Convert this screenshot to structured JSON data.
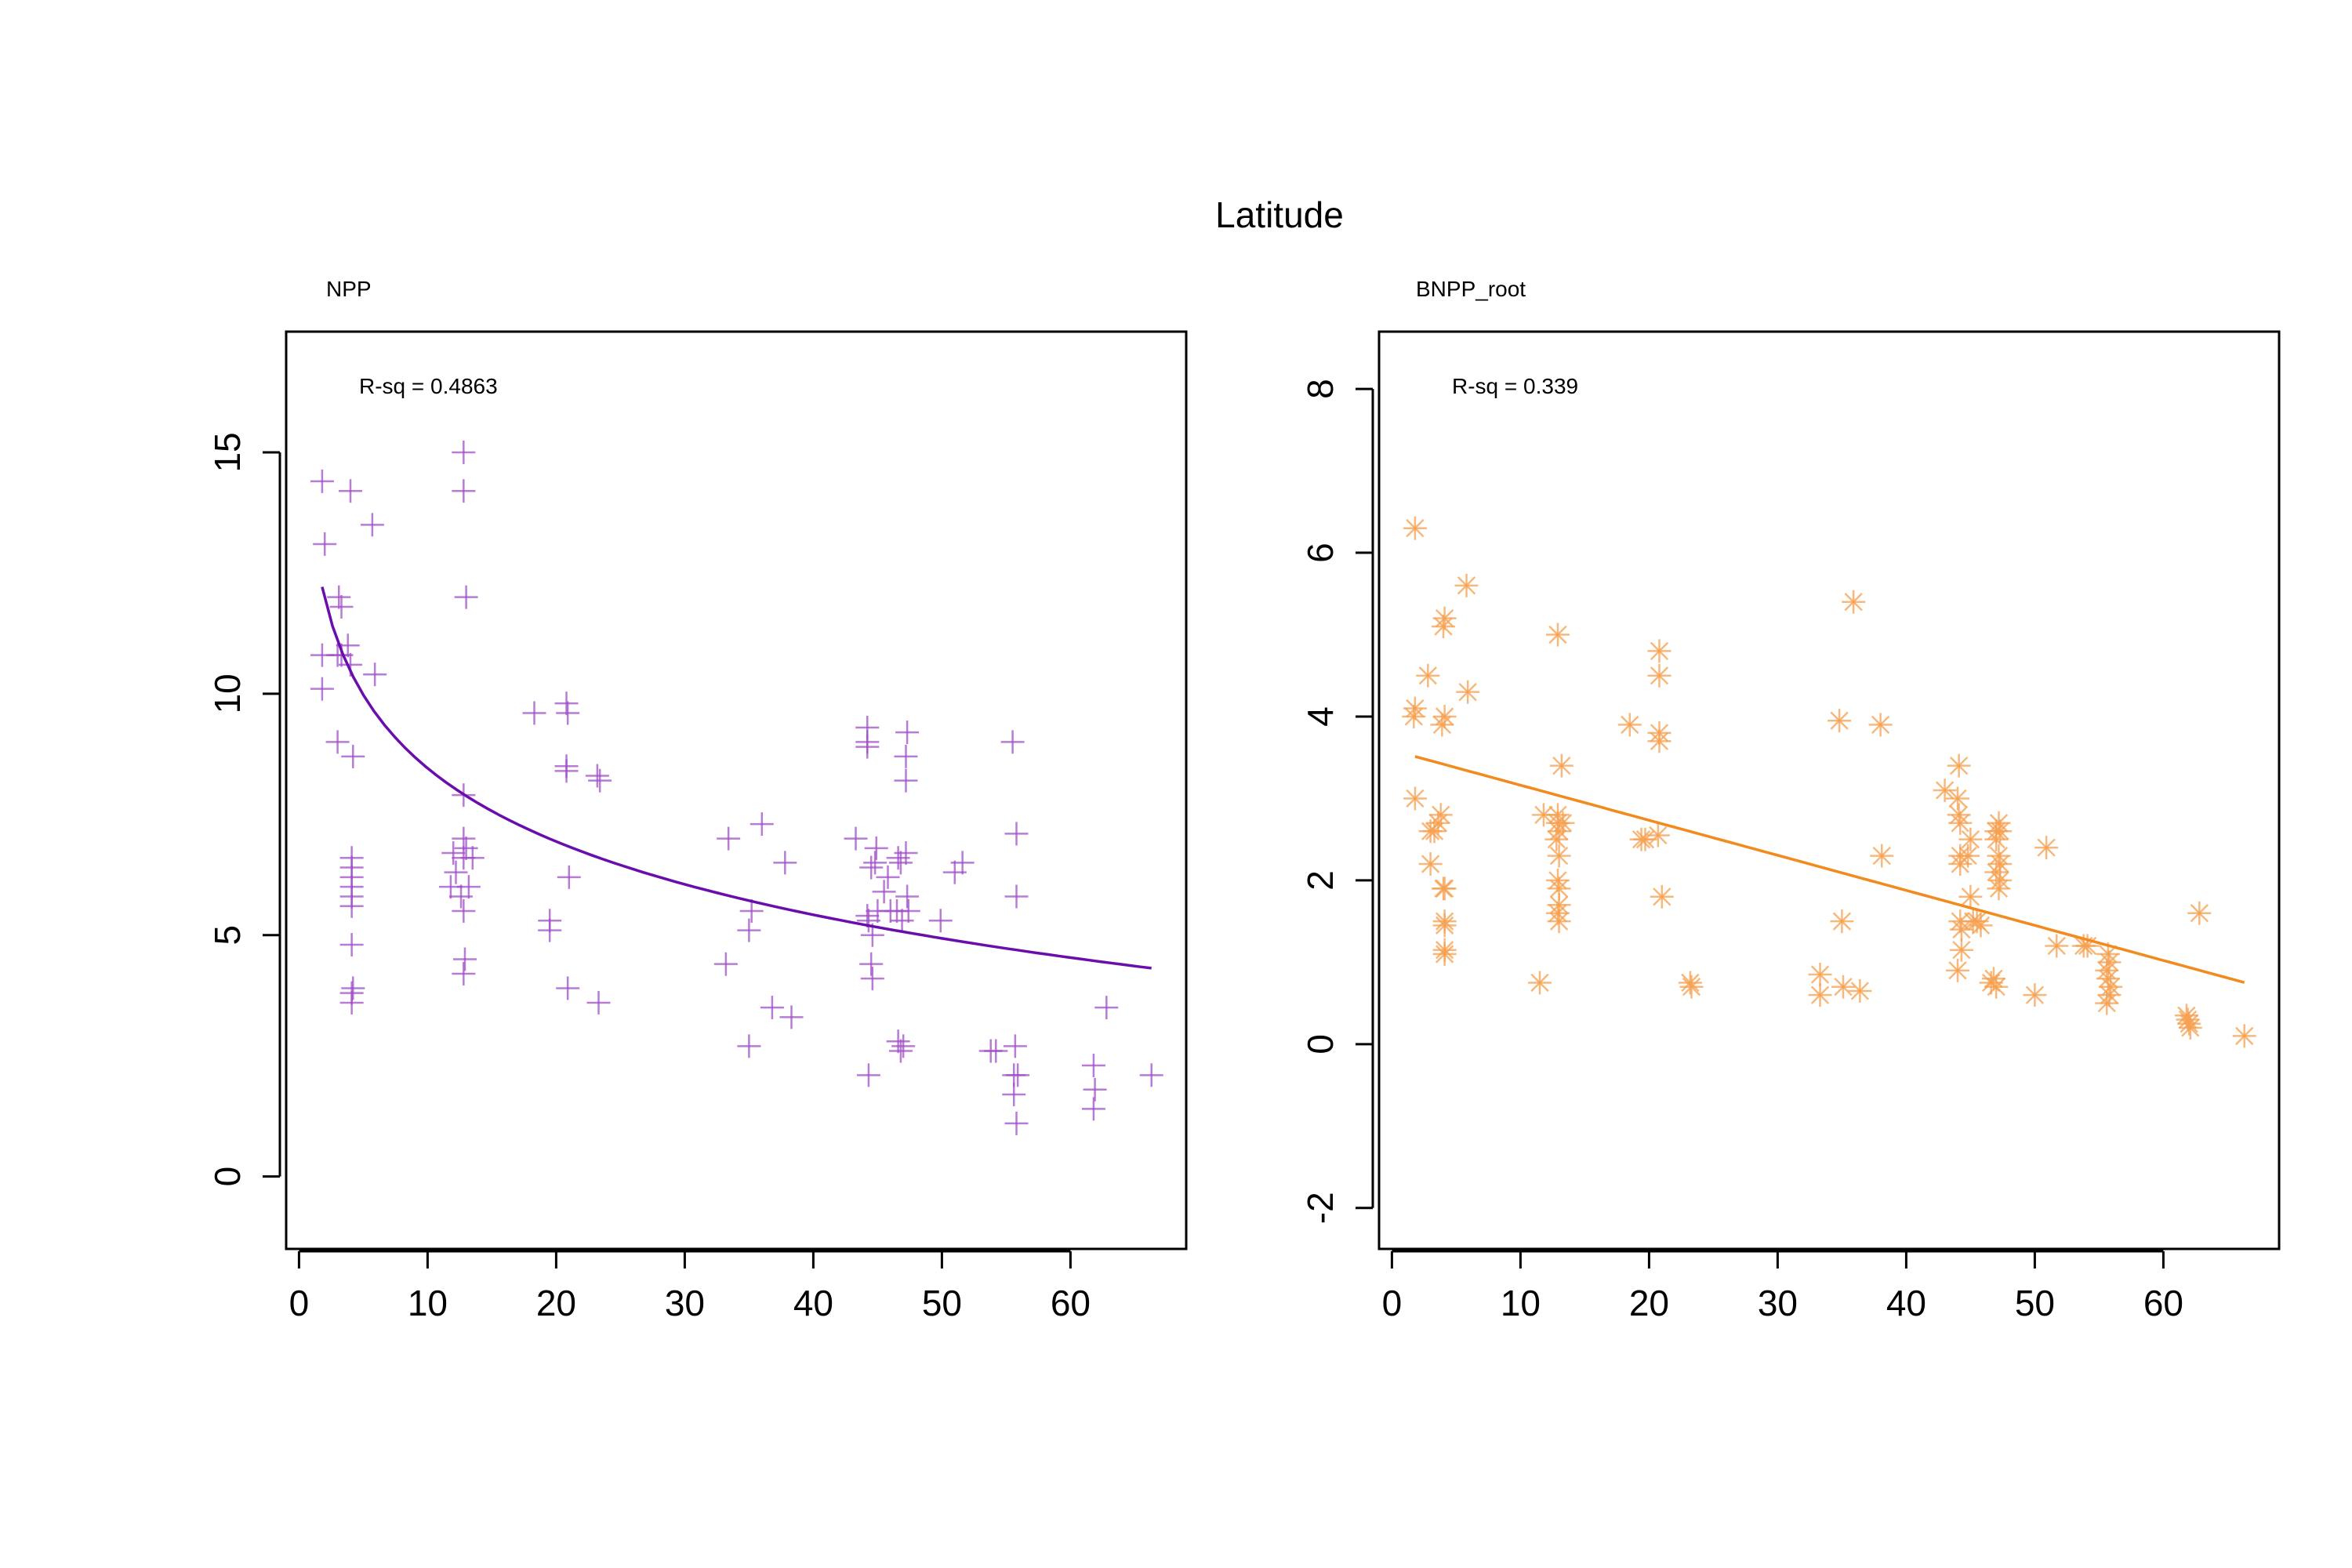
{
  "figure": {
    "title": "Latitude"
  },
  "chart_data": [
    {
      "type": "scatter",
      "title": "NPP",
      "annotation": "R-sq = 0.4863",
      "xlim": [
        -1,
        69
      ],
      "ylim": [
        -1.5,
        17.5
      ],
      "x_ticks": [
        0,
        10,
        20,
        30,
        40,
        50,
        60
      ],
      "y_ticks": [
        0,
        5,
        10,
        15
      ],
      "x_tick_labels": [
        "0",
        "10",
        "20",
        "30",
        "40",
        "50",
        "60"
      ],
      "y_tick_labels": [
        "0",
        "5",
        "10",
        "15"
      ],
      "marker": "plus",
      "point_color": "#a04fc8",
      "line_color": "#6a0dad",
      "fit": {
        "type": "log",
        "a": 13.5,
        "b": -2.19,
        "x_range": [
          1.8,
          66.3
        ]
      },
      "series": [
        {
          "points": [
            [
              1.8,
              14.4
            ],
            [
              2.0,
              13.1
            ],
            [
              1.8,
              10.8
            ],
            [
              1.8,
              10.1
            ],
            [
              3.0,
              10.8
            ],
            [
              3.1,
              12.0
            ],
            [
              3.3,
              11.8
            ],
            [
              3.3,
              10.8
            ],
            [
              3.0,
              9.0
            ],
            [
              4.2,
              8.7
            ],
            [
              4.0,
              14.2
            ],
            [
              4.0,
              10.6
            ],
            [
              3.8,
              11.0
            ],
            [
              5.7,
              13.5
            ],
            [
              5.9,
              10.4
            ],
            [
              4.1,
              6.6
            ],
            [
              4.1,
              6.4
            ],
            [
              4.1,
              6.2
            ],
            [
              4.1,
              6.0
            ],
            [
              4.1,
              5.8
            ],
            [
              4.1,
              5.6
            ],
            [
              4.1,
              4.8
            ],
            [
              4.1,
              3.8
            ],
            [
              4.1,
              3.6
            ],
            [
              4.2,
              3.9
            ],
            [
              12.8,
              15.0
            ],
            [
              12.8,
              14.2
            ],
            [
              13.0,
              12.0
            ],
            [
              12.8,
              7.9
            ],
            [
              12.8,
              7.0
            ],
            [
              12.8,
              6.6
            ],
            [
              13.0,
              6.8
            ],
            [
              13.2,
              6.0
            ],
            [
              12.8,
              5.5
            ],
            [
              12.9,
              4.5
            ],
            [
              12.8,
              4.2
            ],
            [
              12.0,
              6.7
            ],
            [
              11.8,
              6.0
            ],
            [
              12.6,
              5.8
            ],
            [
              13.5,
              6.6
            ],
            [
              12.2,
              6.3
            ],
            [
              18.3,
              9.6
            ],
            [
              20.8,
              9.8
            ],
            [
              20.9,
              9.6
            ],
            [
              20.8,
              8.5
            ],
            [
              20.8,
              8.4
            ],
            [
              21.0,
              6.2
            ],
            [
              19.5,
              5.3
            ],
            [
              19.5,
              5.1
            ],
            [
              20.9,
              3.9
            ],
            [
              23.2,
              8.3
            ],
            [
              23.4,
              8.2
            ],
            [
              23.3,
              3.6
            ],
            [
              33.4,
              7.0
            ],
            [
              35.2,
              5.5
            ],
            [
              35.0,
              5.1
            ],
            [
              35.0,
              2.7
            ],
            [
              33.2,
              4.4
            ],
            [
              36.0,
              7.3
            ],
            [
              36.8,
              3.5
            ],
            [
              37.8,
              6.5
            ],
            [
              38.3,
              3.3
            ],
            [
              43.3,
              7.0
            ],
            [
              44.2,
              9.3
            ],
            [
              44.2,
              9.0
            ],
            [
              44.2,
              8.9
            ],
            [
              44.5,
              6.4
            ],
            [
              44.8,
              6.5
            ],
            [
              44.9,
              6.8
            ],
            [
              44.2,
              5.4
            ],
            [
              44.3,
              5.3
            ],
            [
              44.6,
              5.0
            ],
            [
              45.0,
              5.5
            ],
            [
              44.5,
              4.4
            ],
            [
              44.6,
              4.1
            ],
            [
              44.3,
              2.1
            ],
            [
              45.8,
              6.2
            ],
            [
              45.5,
              5.9
            ],
            [
              46.0,
              5.5
            ],
            [
              46.6,
              2.8
            ],
            [
              46.8,
              2.6
            ],
            [
              47.0,
              2.7
            ],
            [
              46.6,
              6.6
            ],
            [
              46.8,
              6.5
            ],
            [
              47.2,
              6.7
            ],
            [
              47.3,
              9.2
            ],
            [
              47.2,
              8.7
            ],
            [
              47.2,
              8.2
            ],
            [
              46.9,
              5.3
            ],
            [
              47.4,
              5.5
            ],
            [
              47.3,
              5.8
            ],
            [
              46.5,
              5.5
            ],
            [
              49.9,
              5.3
            ],
            [
              51.0,
              6.3
            ],
            [
              51.6,
              6.5
            ],
            [
              53.8,
              2.6
            ],
            [
              54.2,
              2.6
            ],
            [
              55.5,
              9.0
            ],
            [
              55.8,
              7.1
            ],
            [
              55.8,
              5.8
            ],
            [
              55.7,
              2.7
            ],
            [
              55.9,
              2.1
            ],
            [
              55.6,
              2.1
            ],
            [
              55.6,
              1.7
            ],
            [
              55.8,
              1.1
            ],
            [
              61.8,
              2.3
            ],
            [
              61.9,
              1.8
            ],
            [
              61.8,
              1.4
            ],
            [
              62.8,
              3.5
            ],
            [
              66.3,
              2.1
            ]
          ]
        }
      ]
    },
    {
      "type": "scatter",
      "title": "BNPP_root",
      "annotation": "R-sq = 0.339",
      "xlim": [
        -1,
        69
      ],
      "ylim": [
        -2.5,
        8.7
      ],
      "x_ticks": [
        0,
        10,
        20,
        30,
        40,
        50,
        60
      ],
      "y_ticks": [
        -2,
        0,
        2,
        4,
        6,
        8
      ],
      "x_tick_labels": [
        "0",
        "10",
        "20",
        "30",
        "40",
        "50",
        "60"
      ],
      "y_tick_labels": [
        "-2",
        "0",
        "2",
        "4",
        "6",
        "8"
      ],
      "marker": "star",
      "point_color": "#f5a050",
      "line_color": "#f28a1e",
      "fit": {
        "type": "linear",
        "intercept": 3.59,
        "slope": -0.0428,
        "x_range": [
          1.8,
          66.3
        ]
      },
      "series": [
        {
          "points": [
            [
              1.8,
              6.3
            ],
            [
              1.8,
              4.1
            ],
            [
              1.7,
              4.0
            ],
            [
              1.8,
              3.0
            ],
            [
              2.8,
              4.5
            ],
            [
              3.0,
              2.2
            ],
            [
              3.0,
              2.6
            ],
            [
              3.3,
              2.6
            ],
            [
              3.8,
              2.8
            ],
            [
              3.6,
              2.7
            ],
            [
              3.9,
              3.9
            ],
            [
              4.1,
              4.0
            ],
            [
              4.1,
              5.2
            ],
            [
              4.0,
              5.1
            ],
            [
              4.1,
              1.9
            ],
            [
              4.0,
              1.9
            ],
            [
              4.1,
              1.5
            ],
            [
              4.1,
              1.45
            ],
            [
              4.1,
              1.15
            ],
            [
              4.1,
              1.1
            ],
            [
              5.8,
              5.6
            ],
            [
              5.9,
              4.3
            ],
            [
              11.8,
              2.8
            ],
            [
              11.5,
              0.75
            ],
            [
              12.9,
              5.0
            ],
            [
              13.2,
              3.4
            ],
            [
              12.9,
              2.8
            ],
            [
              12.9,
              2.7
            ],
            [
              13.0,
              2.6
            ],
            [
              12.8,
              2.5
            ],
            [
              13.0,
              2.3
            ],
            [
              12.9,
              2.0
            ],
            [
              13.0,
              1.9
            ],
            [
              13.0,
              1.7
            ],
            [
              12.9,
              1.6
            ],
            [
              13.0,
              1.5
            ],
            [
              13.3,
              2.7
            ],
            [
              18.5,
              3.9
            ],
            [
              19.4,
              2.5
            ],
            [
              19.7,
              2.5
            ],
            [
              20.8,
              4.8
            ],
            [
              20.8,
              4.5
            ],
            [
              20.8,
              3.8
            ],
            [
              20.8,
              3.7
            ],
            [
              20.7,
              2.55
            ],
            [
              21.0,
              1.8
            ],
            [
              23.3,
              0.7
            ],
            [
              23.2,
              0.75
            ],
            [
              33.3,
              0.85
            ],
            [
              33.3,
              0.6
            ],
            [
              34.8,
              3.95
            ],
            [
              35.0,
              1.5
            ],
            [
              35.1,
              0.7
            ],
            [
              35.9,
              5.4
            ],
            [
              36.4,
              0.65
            ],
            [
              38.0,
              3.9
            ],
            [
              38.1,
              2.3
            ],
            [
              43.0,
              3.1
            ],
            [
              44.1,
              3.4
            ],
            [
              44.0,
              3.0
            ],
            [
              44.1,
              2.8
            ],
            [
              44.2,
              2.7
            ],
            [
              44.2,
              2.3
            ],
            [
              44.2,
              2.2
            ],
            [
              44.2,
              1.5
            ],
            [
              44.3,
              1.4
            ],
            [
              44.3,
              1.15
            ],
            [
              44.0,
              0.9
            ],
            [
              45.0,
              2.5
            ],
            [
              44.8,
              2.3
            ],
            [
              45.0,
              1.8
            ],
            [
              45.2,
              1.5
            ],
            [
              45.8,
              1.45
            ],
            [
              45.5,
              1.5
            ],
            [
              46.6,
              0.75
            ],
            [
              46.8,
              0.8
            ],
            [
              47.0,
              0.7
            ],
            [
              47.0,
              2.6
            ],
            [
              47.0,
              2.5
            ],
            [
              47.2,
              2.7
            ],
            [
              47.3,
              2.6
            ],
            [
              47.2,
              2.3
            ],
            [
              47.3,
              2.2
            ],
            [
              47.0,
              2.1
            ],
            [
              47.3,
              2.0
            ],
            [
              47.2,
              1.9
            ],
            [
              50.0,
              0.6
            ],
            [
              50.9,
              2.4
            ],
            [
              51.7,
              1.2
            ],
            [
              53.8,
              1.2
            ],
            [
              54.1,
              1.2
            ],
            [
              55.7,
              1.1
            ],
            [
              55.8,
              1.0
            ],
            [
              55.6,
              0.9
            ],
            [
              55.7,
              0.8
            ],
            [
              55.9,
              0.7
            ],
            [
              55.8,
              0.6
            ],
            [
              55.6,
              0.5
            ],
            [
              61.8,
              0.35
            ],
            [
              61.9,
              0.3
            ],
            [
              62.0,
              0.25
            ],
            [
              62.1,
              0.2
            ],
            [
              62.8,
              1.6
            ],
            [
              66.3,
              0.1
            ]
          ]
        }
      ]
    }
  ]
}
